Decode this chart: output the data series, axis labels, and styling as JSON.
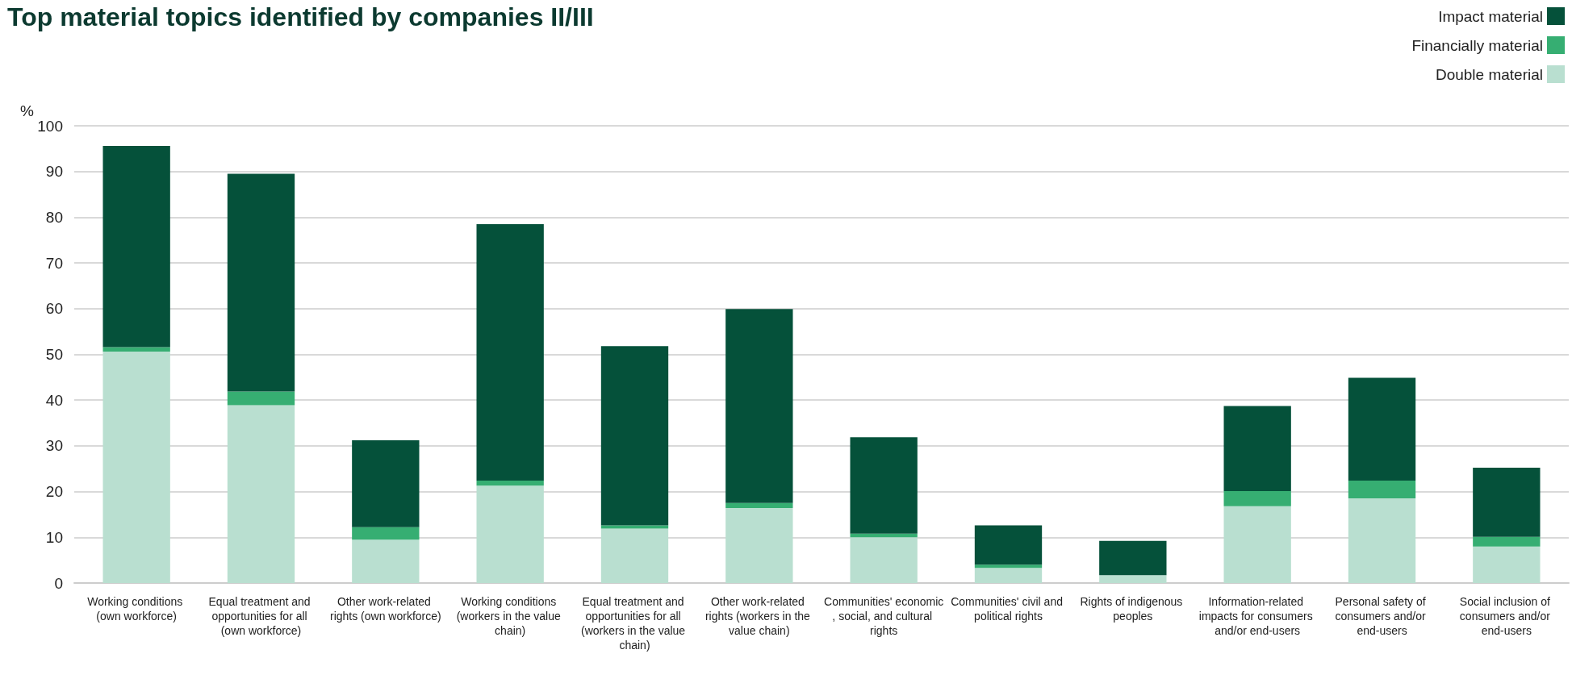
{
  "chart_data": {
    "type": "bar",
    "title": "Top material topics identified by companies II/III",
    "ylabel": "%",
    "categories": [
      "Working conditions (own workforce)",
      "Equal treatment and opportunities for all (own workforce)",
      "Other work-related rights (own workforce)",
      "Working conditions (workers in the value chain)",
      "Equal treatment and opportunities for all (workers in the value chain)",
      "Other work-related rights (workers in the value chain)",
      "Communities' economic, social, and cultural rights",
      "Communities' civil and political rights",
      "Rights of indigenous peoples",
      "Information-related impacts for consumers and/or end-users",
      "Personal safety of consumers and/or end-users",
      "Social inclusion of consumers and/or end-users"
    ],
    "series": [
      {
        "name": "Double material",
        "color": "#b9dfd0",
        "values": [
          50.6,
          38.9,
          9.5,
          21.3,
          11.9,
          16.4,
          10.0,
          3.3,
          1.7,
          16.8,
          18.5,
          8.0
        ]
      },
      {
        "name": "Financially material",
        "color": "#36ae72",
        "values": [
          1.0,
          3.0,
          2.7,
          1.1,
          0.7,
          1.1,
          0.8,
          0.7,
          0,
          3.3,
          3.9,
          2.1
        ]
      },
      {
        "name": "Impact material",
        "color": "#05513a",
        "values": [
          44.0,
          47.6,
          19.0,
          56.1,
          39.2,
          42.4,
          21.1,
          8.6,
          7.5,
          18.6,
          22.5,
          15.1
        ]
      }
    ],
    "stacked": true,
    "ylim": [
      0,
      100
    ],
    "yticks": [
      0,
      10,
      20,
      30,
      40,
      50,
      60,
      70,
      80,
      90,
      100
    ],
    "grid": "y",
    "legend": "top right"
  }
}
